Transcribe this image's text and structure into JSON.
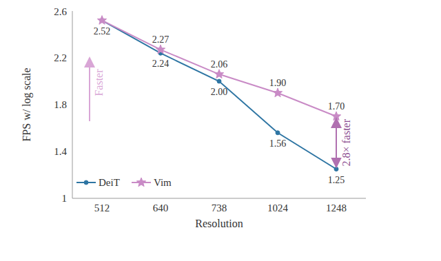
{
  "chart_data": {
    "type": "line",
    "x_label": "Resolution",
    "y_label": "FPS w/ log scale",
    "categories": [
      "512",
      "640",
      "738",
      "1024",
      "1248"
    ],
    "series": [
      {
        "name": "DeiT",
        "color": "#2e75a3",
        "marker": "circle",
        "values": [
          2.52,
          2.24,
          2.0,
          1.56,
          1.25
        ],
        "value_labels": [
          "2.52",
          "2.24",
          "2.00",
          "1.56",
          "1.25"
        ]
      },
      {
        "name": "Vim",
        "color": "#c98bc6",
        "marker": "star",
        "values": [
          2.52,
          2.27,
          2.06,
          1.9,
          1.7
        ],
        "value_labels": [
          null,
          "2.27",
          "2.06",
          "1.90",
          "1.70"
        ]
      }
    ],
    "ylim": [
      1,
      2.6
    ],
    "yticks": [
      1,
      1.4,
      1.8,
      2.2,
      2.6
    ],
    "grid": false,
    "legend": "lower left",
    "data_labels": true,
    "annotations": [
      "Faster",
      "2.8× faster"
    ]
  }
}
